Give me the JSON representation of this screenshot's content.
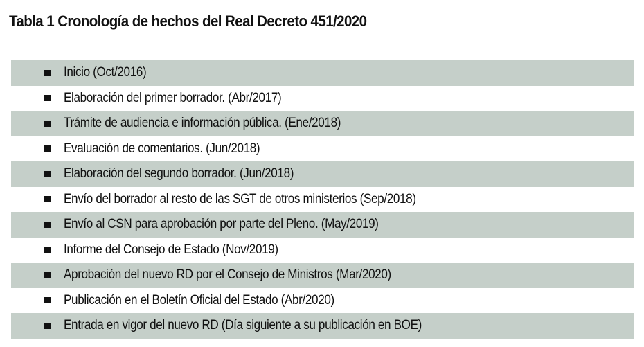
{
  "title": "Tabla 1 Cronología de hechos del Real Decreto 451/2020",
  "colors": {
    "shaded_row": "#c5cfc9",
    "plain_row": "#ffffff",
    "text": "#111111"
  },
  "items": [
    {
      "icon": "square-bullet-icon",
      "label": "Inicio (Oct/2016)"
    },
    {
      "icon": "square-bullet-icon",
      "label": "Elaboración del primer borrador. (Abr/2017)"
    },
    {
      "icon": "square-bullet-icon",
      "label": "Trámite de audiencia e información pública. (Ene/2018)"
    },
    {
      "icon": "square-bullet-icon",
      "label": "Evaluación de comentarios. (Jun/2018)"
    },
    {
      "icon": "square-bullet-icon",
      "label": "Elaboración del segundo borrador. (Jun/2018)"
    },
    {
      "icon": "square-bullet-icon",
      "label": "Envío del borrador al resto de las SGT de otros ministerios (Sep/2018)"
    },
    {
      "icon": "square-bullet-icon",
      "label": "Envío al CSN para aprobación por parte del Pleno. (May/2019)"
    },
    {
      "icon": "square-bullet-icon",
      "label": "Informe del Consejo de Estado (Nov/2019)"
    },
    {
      "icon": "square-bullet-icon",
      "label": "Aprobación del nuevo RD por el Consejo de Ministros (Mar/2020)"
    },
    {
      "icon": "square-bullet-icon",
      "label": "Publicación en el Boletín Oficial del Estado (Abr/2020)"
    },
    {
      "icon": "square-bullet-icon",
      "label": "Entrada en vigor del nuevo RD (Día siguiente a su publicación en BOE)"
    }
  ]
}
